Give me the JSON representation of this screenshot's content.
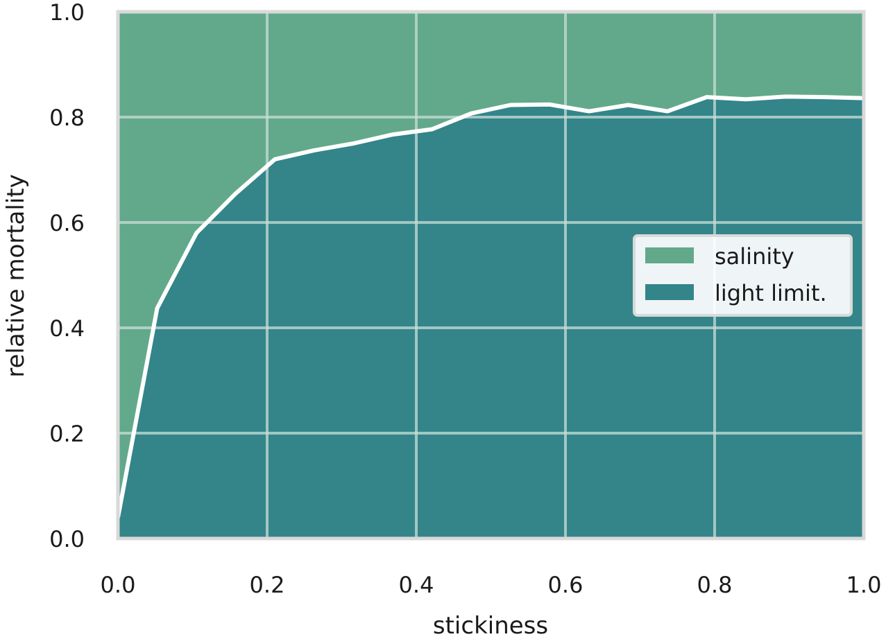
{
  "chart_data": {
    "type": "area",
    "stacked": true,
    "title": "",
    "xlabel": "stickiness",
    "ylabel": "relative mortality",
    "xlim": [
      0.0,
      1.0
    ],
    "ylim": [
      0.0,
      1.0
    ],
    "xticks": [
      "0.0",
      "0.2",
      "0.4",
      "0.6",
      "0.8",
      "1.0"
    ],
    "yticks": [
      "0.0",
      "0.2",
      "0.4",
      "0.6",
      "0.8",
      "1.0"
    ],
    "grid": true,
    "legend": "center-right",
    "x": [
      0.0,
      0.0526,
      0.1053,
      0.1579,
      0.2105,
      0.2632,
      0.3158,
      0.3684,
      0.4211,
      0.4737,
      0.5263,
      0.5789,
      0.6316,
      0.6842,
      0.7368,
      0.7895,
      0.8421,
      0.8947,
      0.9474,
      1.0
    ],
    "series": [
      {
        "name": "light limit.",
        "color": "#338589",
        "values": [
          0.04,
          0.437,
          0.58,
          0.655,
          0.72,
          0.737,
          0.75,
          0.767,
          0.777,
          0.807,
          0.823,
          0.824,
          0.811,
          0.823,
          0.811,
          0.838,
          0.834,
          0.839,
          0.838,
          0.836
        ]
      },
      {
        "name": "salinity",
        "color": "#62a98c",
        "values": [
          0.96,
          0.563,
          0.42,
          0.345,
          0.28,
          0.263,
          0.25,
          0.233,
          0.223,
          0.193,
          0.177,
          0.176,
          0.189,
          0.177,
          0.189,
          0.162,
          0.166,
          0.161,
          0.162,
          0.164
        ]
      }
    ],
    "boundary_line_color": "#ffffff",
    "grid_color": "#c9ddd8",
    "frame_color": "#d9d9d9"
  }
}
